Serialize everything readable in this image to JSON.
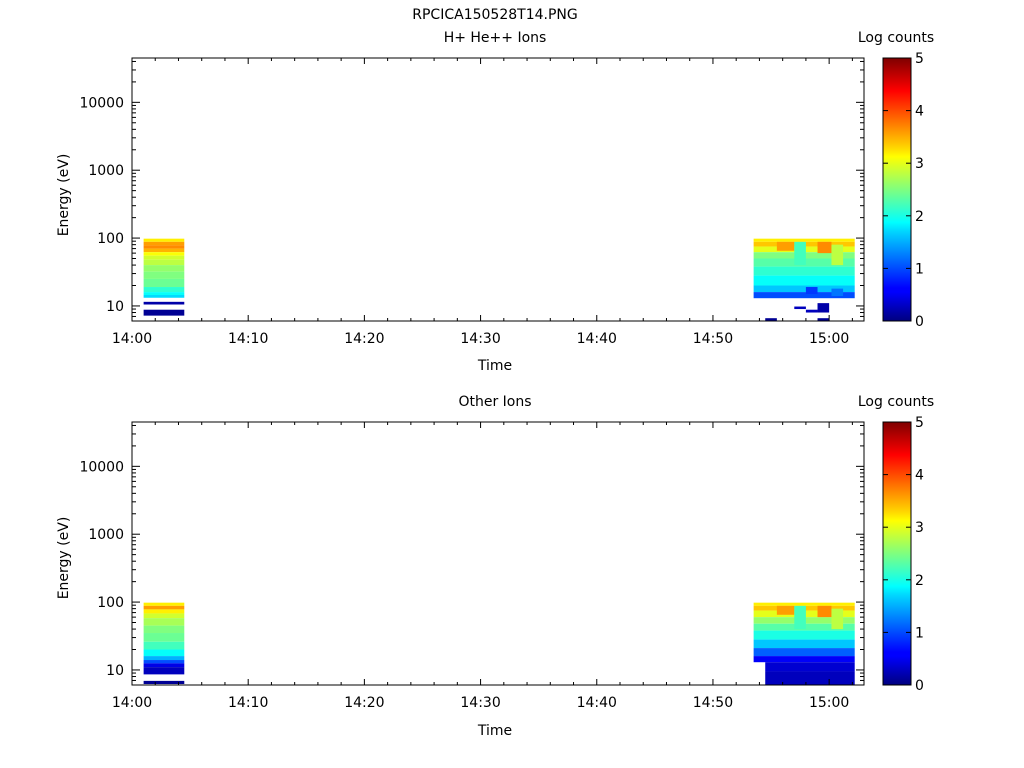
{
  "figure_title": "RPCICA150528T14.PNG",
  "chart_data": [
    {
      "type": "heatmap",
      "title": "H+ He++ Ions",
      "xlabel": "Time",
      "ylabel": "Energy (eV)",
      "x_ticks": [
        "14:00",
        "14:10",
        "14:20",
        "14:30",
        "14:40",
        "14:50",
        "15:00"
      ],
      "x_range": [
        "14:00",
        "15:03"
      ],
      "y_scale": "log",
      "y_range": [
        6,
        45000
      ],
      "y_ticks": [
        10,
        100,
        1000,
        10000
      ],
      "colorbar": {
        "label": "Log counts",
        "range": [
          0,
          5
        ],
        "ticks": [
          0,
          1,
          2,
          3,
          4,
          5
        ],
        "colormap": "jet"
      },
      "cells": [
        {
          "t0": "14:01",
          "t1": "14:04.5",
          "e0": 88,
          "e1": 98,
          "v": 3.2
        },
        {
          "t0": "14:01",
          "t1": "14:04.5",
          "e0": 78,
          "e1": 88,
          "v": 3.6
        },
        {
          "t0": "14:01",
          "t1": "14:04.5",
          "e0": 70,
          "e1": 78,
          "v": 3.7
        },
        {
          "t0": "14:01",
          "t1": "14:04.5",
          "e0": 62,
          "e1": 70,
          "v": 3.5
        },
        {
          "t0": "14:01",
          "t1": "14:04.5",
          "e0": 55,
          "e1": 62,
          "v": 3.1
        },
        {
          "t0": "14:01",
          "t1": "14:04.5",
          "e0": 48,
          "e1": 55,
          "v": 2.9
        },
        {
          "t0": "14:01",
          "t1": "14:04.5",
          "e0": 40,
          "e1": 48,
          "v": 2.8
        },
        {
          "t0": "14:01",
          "t1": "14:04.5",
          "e0": 32,
          "e1": 40,
          "v": 2.6
        },
        {
          "t0": "14:01",
          "t1": "14:04.5",
          "e0": 25,
          "e1": 32,
          "v": 2.5
        },
        {
          "t0": "14:01",
          "t1": "14:04.5",
          "e0": 19,
          "e1": 25,
          "v": 2.4
        },
        {
          "t0": "14:01",
          "t1": "14:04.5",
          "e0": 16,
          "e1": 19,
          "v": 2.1
        },
        {
          "t0": "14:01",
          "t1": "14:04.5",
          "e0": 14.5,
          "e1": 16,
          "v": 1.9
        },
        {
          "t0": "14:01",
          "t1": "14:04.5",
          "e0": 13.2,
          "e1": 14.5,
          "v": 1.7
        },
        {
          "t0": "14:01",
          "t1": "14:04.5",
          "e0": 10.5,
          "e1": 11.5,
          "v": 0.2
        },
        {
          "t0": "14:01",
          "t1": "14:04.5",
          "e0": 7.2,
          "e1": 8.8,
          "v": 0.1
        },
        {
          "t0": "14:53.5",
          "t1": "15:02.2",
          "e0": 88,
          "e1": 98,
          "v": 3.2
        },
        {
          "t0": "14:53.5",
          "t1": "15:02.2",
          "e0": 75,
          "e1": 88,
          "v": 3.4
        },
        {
          "t0": "14:53.5",
          "t1": "15:02.2",
          "e0": 62,
          "e1": 75,
          "v": 3.0
        },
        {
          "t0": "14:53.5",
          "t1": "15:02.2",
          "e0": 50,
          "e1": 62,
          "v": 2.5
        },
        {
          "t0": "14:53.5",
          "t1": "15:02.2",
          "e0": 38,
          "e1": 50,
          "v": 2.3
        },
        {
          "t0": "14:53.5",
          "t1": "15:02.2",
          "e0": 28,
          "e1": 38,
          "v": 2.1
        },
        {
          "t0": "14:53.5",
          "t1": "15:02.2",
          "e0": 20,
          "e1": 28,
          "v": 1.9
        },
        {
          "t0": "14:53.5",
          "t1": "15:02.2",
          "e0": 16,
          "e1": 20,
          "v": 1.6
        },
        {
          "t0": "14:53.5",
          "t1": "15:02.2",
          "e0": 13,
          "e1": 16,
          "v": 1.0
        },
        {
          "t0": "14:55.5",
          "t1": "14:57",
          "e0": 65,
          "e1": 88,
          "v": 3.6
        },
        {
          "t0": "14:57",
          "t1": "14:58",
          "e0": 40,
          "e1": 88,
          "v": 2.2
        },
        {
          "t0": "14:59",
          "t1": "15:00.2",
          "e0": 60,
          "e1": 88,
          "v": 3.7
        },
        {
          "t0": "15:00.2",
          "t1": "15:01.2",
          "e0": 40,
          "e1": 80,
          "v": 2.8
        },
        {
          "t0": "14:58",
          "t1": "14:59",
          "e0": 15,
          "e1": 19,
          "v": 0.9
        },
        {
          "t0": "15:00.2",
          "t1": "15:01.2",
          "e0": 14,
          "e1": 18,
          "v": 1.2
        },
        {
          "t0": "14:57",
          "t1": "14:58",
          "e0": 9,
          "e1": 9.8,
          "v": 0.3
        },
        {
          "t0": "14:58",
          "t1": "14:59",
          "e0": 8,
          "e1": 8.8,
          "v": 0.3
        },
        {
          "t0": "14:59",
          "t1": "15:00",
          "e0": 8,
          "e1": 11,
          "v": 0.2
        },
        {
          "t0": "14:54.5",
          "t1": "14:55.5",
          "e0": 6,
          "e1": 6.6,
          "v": 0.1
        },
        {
          "t0": "14:59",
          "t1": "15:00",
          "e0": 6,
          "e1": 6.6,
          "v": 0.1
        }
      ]
    },
    {
      "type": "heatmap",
      "title": "Other Ions",
      "xlabel": "Time",
      "ylabel": "Energy (eV)",
      "x_ticks": [
        "14:00",
        "14:10",
        "14:20",
        "14:30",
        "14:40",
        "14:50",
        "15:00"
      ],
      "x_range": [
        "14:00",
        "15:03"
      ],
      "y_scale": "log",
      "y_range": [
        6,
        45000
      ],
      "y_ticks": [
        10,
        100,
        1000,
        10000
      ],
      "colorbar": {
        "label": "Log counts",
        "range": [
          0,
          5
        ],
        "ticks": [
          0,
          1,
          2,
          3,
          4,
          5
        ],
        "colormap": "jet"
      },
      "cells": [
        {
          "t0": "14:01",
          "t1": "14:04.5",
          "e0": 88,
          "e1": 98,
          "v": 3.2
        },
        {
          "t0": "14:01",
          "t1": "14:04.5",
          "e0": 78,
          "e1": 88,
          "v": 3.6
        },
        {
          "t0": "14:01",
          "t1": "14:04.5",
          "e0": 68,
          "e1": 78,
          "v": 3.2
        },
        {
          "t0": "14:01",
          "t1": "14:04.5",
          "e0": 58,
          "e1": 68,
          "v": 2.9
        },
        {
          "t0": "14:01",
          "t1": "14:04.5",
          "e0": 45,
          "e1": 58,
          "v": 2.7
        },
        {
          "t0": "14:01",
          "t1": "14:04.5",
          "e0": 35,
          "e1": 45,
          "v": 2.5
        },
        {
          "t0": "14:01",
          "t1": "14:04.5",
          "e0": 26,
          "e1": 35,
          "v": 2.4
        },
        {
          "t0": "14:01",
          "t1": "14:04.5",
          "e0": 20,
          "e1": 26,
          "v": 2.2
        },
        {
          "t0": "14:01",
          "t1": "14:04.5",
          "e0": 16,
          "e1": 20,
          "v": 1.9
        },
        {
          "t0": "14:01",
          "t1": "14:04.5",
          "e0": 14,
          "e1": 16,
          "v": 1.5
        },
        {
          "t0": "14:01",
          "t1": "14:04.5",
          "e0": 12.5,
          "e1": 14,
          "v": 1.0
        },
        {
          "t0": "14:01",
          "t1": "14:04.5",
          "e0": 11,
          "e1": 12.5,
          "v": 0.5
        },
        {
          "t0": "14:01",
          "t1": "14:04.5",
          "e0": 8.6,
          "e1": 11,
          "v": 0.3
        },
        {
          "t0": "14:01",
          "t1": "14:04.5",
          "e0": 6.2,
          "e1": 6.9,
          "v": 0.1
        },
        {
          "t0": "14:53.5",
          "t1": "15:02.2",
          "e0": 88,
          "e1": 98,
          "v": 3.2
        },
        {
          "t0": "14:53.5",
          "t1": "15:02.2",
          "e0": 75,
          "e1": 88,
          "v": 3.4
        },
        {
          "t0": "14:53.5",
          "t1": "15:02.2",
          "e0": 60,
          "e1": 75,
          "v": 3.0
        },
        {
          "t0": "14:53.5",
          "t1": "15:02.2",
          "e0": 48,
          "e1": 60,
          "v": 2.6
        },
        {
          "t0": "14:53.5",
          "t1": "15:02.2",
          "e0": 38,
          "e1": 48,
          "v": 2.3
        },
        {
          "t0": "14:53.5",
          "t1": "15:02.2",
          "e0": 28,
          "e1": 38,
          "v": 2.0
        },
        {
          "t0": "14:53.5",
          "t1": "15:02.2",
          "e0": 21,
          "e1": 28,
          "v": 1.6
        },
        {
          "t0": "14:53.5",
          "t1": "15:02.2",
          "e0": 16,
          "e1": 21,
          "v": 1.1
        },
        {
          "t0": "14:53.5",
          "t1": "15:02.2",
          "e0": 13,
          "e1": 16,
          "v": 0.6
        },
        {
          "t0": "14:54.5",
          "t1": "15:02.2",
          "e0": 9.5,
          "e1": 13,
          "v": 0.4
        },
        {
          "t0": "14:54.5",
          "t1": "15:02.2",
          "e0": 6,
          "e1": 9.5,
          "v": 0.3
        },
        {
          "t0": "14:55.5",
          "t1": "14:57",
          "e0": 65,
          "e1": 88,
          "v": 3.6
        },
        {
          "t0": "14:57",
          "t1": "14:58",
          "e0": 40,
          "e1": 88,
          "v": 2.2
        },
        {
          "t0": "14:59",
          "t1": "15:00.2",
          "e0": 60,
          "e1": 88,
          "v": 3.7
        },
        {
          "t0": "15:00.2",
          "t1": "15:01.2",
          "e0": 40,
          "e1": 80,
          "v": 2.8
        }
      ]
    }
  ]
}
